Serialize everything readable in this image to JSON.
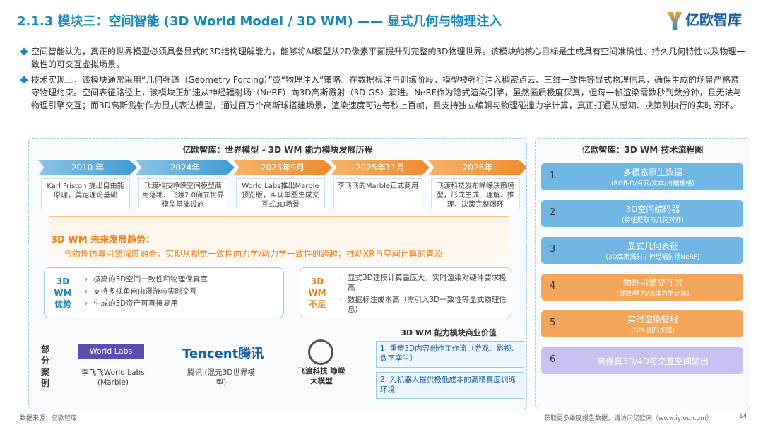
{
  "header": {
    "title": "2.1.3 模块三：空间智能 (3D World Model / 3D WM) —— 显式几何与物理注入",
    "logo": "亿欧智库"
  },
  "bullets": [
    "空间智能认为，真正的世界模型必须具备显式的3D结构理解能力，能够将AI模型从2D像素平面提升到完整的3D物理世界。该模块的核心目标是生成具有空间准确性、持久几何特性以及物理一致性的可交互虚拟场景。",
    "技术实现上，该模块通常采用“几何强道（Geometry Forcing）”或“物理注入”策略。在数据标注与训练阶段，模型被强行注入稠密点云、三维一致性等显式物理信息，确保生成的场景严格遵守物理约束。空间表征路径上，该模块正加速从神经辐射场（NeRF）向3D高斯溅射（3D GS）演进。NeRF作为隐式渲染引擎，虽然画质极度保真，但每一帧渲染需数秒到数分钟，且无法与物理引擎交互；而3D高斯溅射作为显式表达模型，通过百万个高斯球搭建场景，渲染速度可达每秒上百帧，且支持独立编辑与物理碰撞力学计算，真正打通从感知、决策到执行的实时闭环。"
  ],
  "timeline": {
    "title": "亿欧智库：世界模型 - 3D WM 能力模块发展历程",
    "events": [
      {
        "year": "2010 年",
        "text": "Karl Friston 提出自由能原理，奠定理论基础"
      },
      {
        "year": "2024年",
        "text": "飞渡科技峥嵘空间模型商用落地、飞渡2.0确立世界模型基础设施"
      },
      {
        "year": "2025年9月",
        "text": "World Labs推出Marble预览版，实现单图生成交互式3D场景"
      },
      {
        "year": "2025年11月",
        "text": "李飞飞的Marble正式商用"
      },
      {
        "year": "2026年",
        "text": "飞渡科技发布峥嵘决策模型，形成生成、理解、推理、决策完整闭环"
      }
    ],
    "trend": {
      "title": "3D WM 未来发展趋势：",
      "text": "与物理仿真引擎深度融合，实现从视觉一致性向力学/动力学一致性的跨越；推动XR与空间计算的普及"
    },
    "pros": {
      "label": "3D WM 优势",
      "items": [
        "极高的3D空间一致性和物理保真度",
        "支持多视角自由漫游与实时交互",
        "生成的3D资产可直接复用"
      ]
    },
    "cons": {
      "label": "3D WM 不足",
      "items": [
        "显式3D建模计算量庞大，实时渲染对硬件要求极高",
        "数据标注成本高（需引入3D一致性等显式物理信息）"
      ]
    }
  },
  "cases": {
    "label": "部分案例",
    "items": [
      {
        "logo": "World Labs",
        "caption": "李飞飞World Labs (Marble)"
      },
      {
        "logo": "Tencent腾讯",
        "caption": "腾讯 (混元3D世界模型)"
      },
      {
        "caption": "飞渡科技 峥嵘大模型"
      }
    ]
  },
  "commercial": {
    "title": "3D WM 能力模块商业价值",
    "items": [
      "1. 重塑3D内容创作工作流（游戏、影视、数字孪生）",
      "2. 为机器人提供极低成本的高精真度训练环境"
    ]
  },
  "flow": {
    "title": "亿欧智库：3D WM 技术流程图",
    "steps": [
      {
        "num": "1",
        "title": "多模态原生数据",
        "sub": "(RGB-D/点云/文本/占据栅格)"
      },
      {
        "num": "2",
        "title": "3D空间编码器",
        "sub": "(特征提取与几何对齐)"
      },
      {
        "num": "3",
        "title": "显式几何表征",
        "sub": "(3D高斯溅射 / 神经辐射场NeRF)"
      },
      {
        "num": "4",
        "title": "物理引擎交互层",
        "sub": "(碰撞/重力/流体力学计算)"
      },
      {
        "num": "5",
        "title": "实时渲染管线",
        "sub": "(GPU图形加速)"
      },
      {
        "num": "6",
        "title": "高保真3D/4D可交互空间输出"
      }
    ]
  },
  "footer": {
    "source": "数据来源：亿欧智库",
    "note": "获取更多维度报告数据，请访问亿欧网（www.iyiou.com）",
    "page": "14"
  }
}
